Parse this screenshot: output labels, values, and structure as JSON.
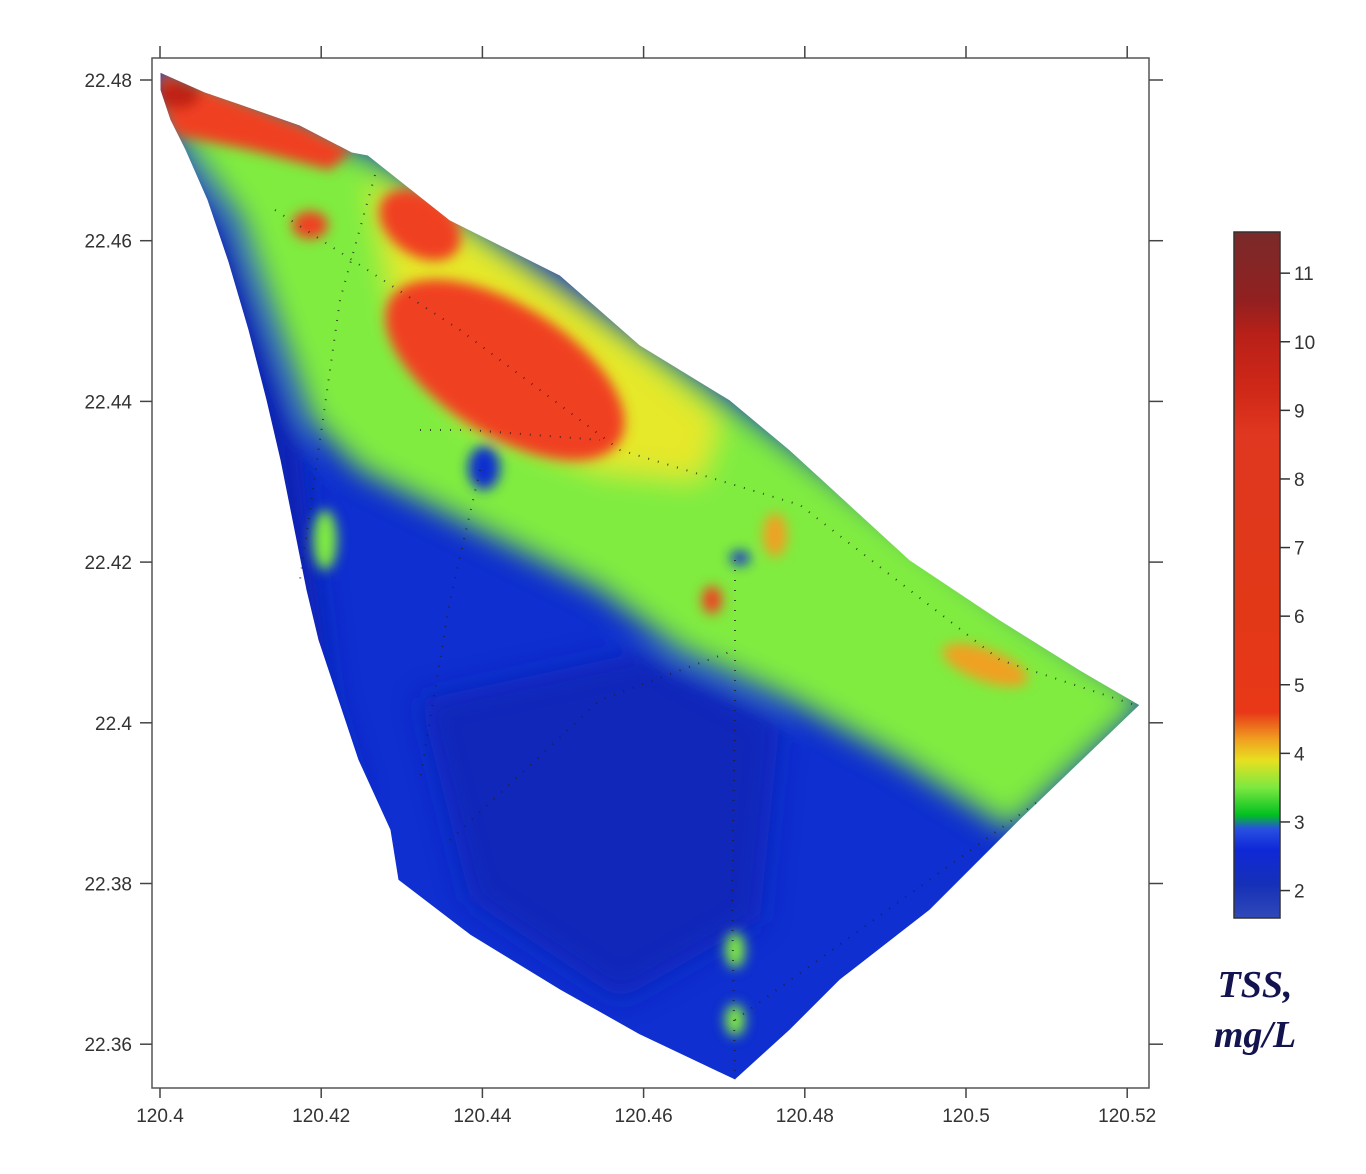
{
  "plot": {
    "x_ticks": [
      "120.4",
      "120.42",
      "120.44",
      "120.46",
      "120.48",
      "120.5",
      "120.52"
    ],
    "y_ticks": [
      "22.48",
      "22.46",
      "22.44",
      "22.42",
      "22.4",
      "22.38",
      "22.36"
    ],
    "xlim": [
      120.4,
      120.521
    ],
    "ylim": [
      22.355,
      22.481
    ]
  },
  "colorbar": {
    "ticks": [
      "11",
      "10",
      "9",
      "8",
      "7",
      "6",
      "5",
      "4",
      "3",
      "2"
    ],
    "range": [
      1.6,
      11.6
    ],
    "colors": [
      "#3048b8",
      "#1530b8",
      "#0f28d8",
      "#2850e0",
      "#00c020",
      "#7ce840",
      "#e8e020",
      "#f0a020",
      "#e83818",
      "#e03818",
      "#e03820",
      "#d02818",
      "#b82018",
      "#922020",
      "#7a2a2a"
    ]
  },
  "legend": {
    "title_line1": "TSS,",
    "title_line2": "mg/L"
  },
  "map": {
    "colors": {
      "low": "#0f2fd0",
      "low_dark": "#0a22b0",
      "mid": "#80ec40",
      "mid_high": "#e6e82a",
      "high": "#f04020",
      "very_high": "#c02018"
    }
  }
}
